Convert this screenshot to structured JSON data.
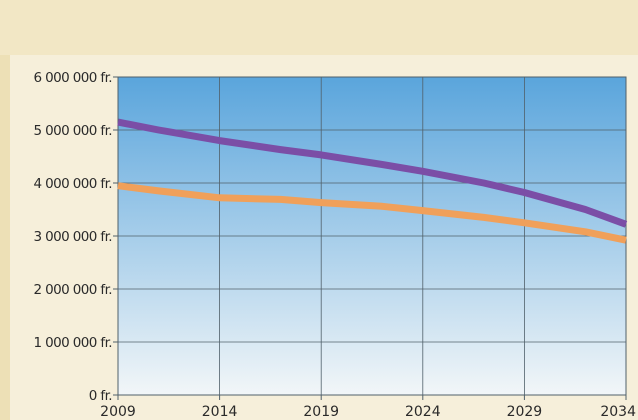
{
  "chart_data": {
    "type": "line",
    "x": [
      2009,
      2014,
      2019,
      2024,
      2029,
      2034
    ],
    "x_tick_labels": [
      "2009",
      "2014",
      "2019",
      "2024",
      "2029",
      "2034"
    ],
    "y_tick_values": [
      0,
      1000000,
      2000000,
      3000000,
      4000000,
      5000000,
      6000000
    ],
    "y_tick_labels": [
      "0 fr.",
      "1 000 000 fr.",
      "2 000 000 fr.",
      "3 000 000 fr.",
      "4 000 000 fr.",
      "5 000 000 fr.",
      "6 000 000 fr."
    ],
    "xlim": [
      2009,
      2034
    ],
    "ylim": [
      0,
      6000000
    ],
    "grid": true,
    "legend": "none",
    "series": [
      {
        "color": "#7b4ea6",
        "points": [
          [
            2009,
            5150000
          ],
          [
            2011,
            5000000
          ],
          [
            2014,
            4800000
          ],
          [
            2017,
            4630000
          ],
          [
            2019,
            4530000
          ],
          [
            2022,
            4350000
          ],
          [
            2024,
            4220000
          ],
          [
            2027,
            4000000
          ],
          [
            2029,
            3820000
          ],
          [
            2032,
            3500000
          ],
          [
            2034,
            3220000
          ]
        ]
      },
      {
        "color": "#f0a05a",
        "points": [
          [
            2009,
            3950000
          ],
          [
            2011,
            3850000
          ],
          [
            2014,
            3720000
          ],
          [
            2017,
            3690000
          ],
          [
            2019,
            3630000
          ],
          [
            2022,
            3560000
          ],
          [
            2024,
            3480000
          ],
          [
            2027,
            3350000
          ],
          [
            2029,
            3250000
          ],
          [
            2032,
            3080000
          ],
          [
            2034,
            2920000
          ]
        ]
      }
    ]
  },
  "colors": {
    "plot_top": "#5aa5dc",
    "plot_bottom": "#f2f6f8",
    "grid": "#50606a",
    "page_background": "#ede0b6"
  }
}
